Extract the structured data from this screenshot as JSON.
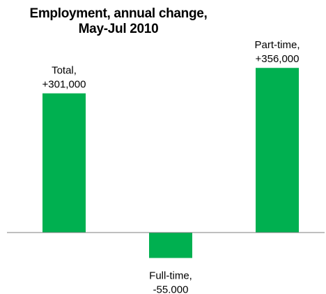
{
  "chart_data": {
    "type": "bar",
    "title_lines": [
      "Employment, annual change,",
      "May-Jul 2010"
    ],
    "categories": [
      "Total",
      "Full-time",
      "Part-time"
    ],
    "values": [
      301000,
      -55000,
      356000
    ],
    "data_labels": [
      [
        "Total,",
        "+301,000"
      ],
      [
        "Full-time,",
        "-55.000"
      ],
      [
        "Part-time,",
        "+356,000"
      ]
    ],
    "ylim": [
      -120000,
      420000
    ],
    "grid": false,
    "legend": "none",
    "bar_color": "#00b050",
    "axis_color": "#7f7f7f"
  }
}
